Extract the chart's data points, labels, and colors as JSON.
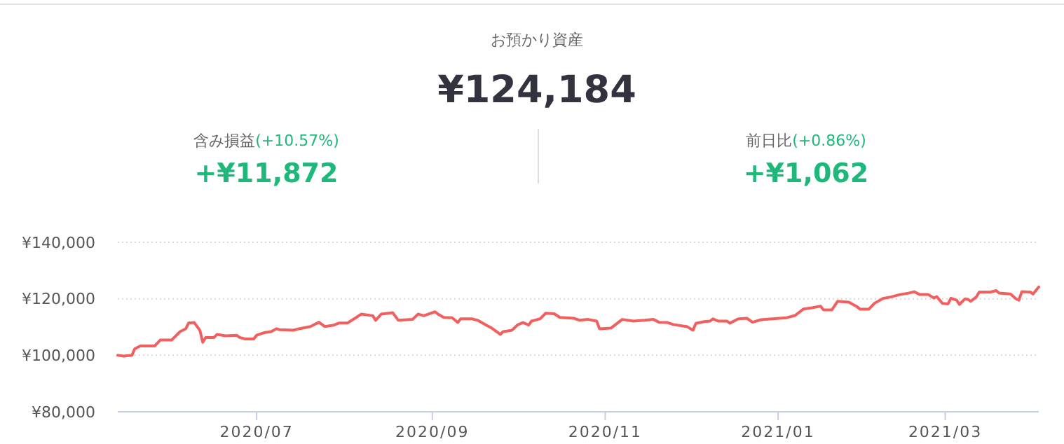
{
  "chart_data": {
    "type": "line",
    "title": "お預かり資産",
    "subtitle": "¥124,184",
    "annotations": [
      "含み損益",
      "(+10.57%)",
      "+¥11,872",
      "前日比",
      "(+0.86%)",
      "+¥1,062"
    ],
    "x": [
      "2020-05-13",
      "2020-05-15",
      "2020-05-18",
      "2020-05-19",
      "2020-05-21",
      "2020-05-26",
      "2020-05-28",
      "2020-06-01",
      "2020-06-04",
      "2020-06-06",
      "2020-06-07",
      "2020-06-09",
      "2020-06-11",
      "2020-06-12",
      "2020-06-13",
      "2020-06-16",
      "2020-06-17",
      "2020-06-20",
      "2020-06-24",
      "2020-06-25",
      "2020-06-27",
      "2020-06-30",
      "2020-07-01",
      "2020-07-04",
      "2020-07-06",
      "2020-07-08",
      "2020-07-09",
      "2020-07-14",
      "2020-07-16",
      "2020-07-20",
      "2020-07-23",
      "2020-07-25",
      "2020-07-28",
      "2020-07-30",
      "2020-08-02",
      "2020-08-05",
      "2020-08-07",
      "2020-08-11",
      "2020-08-12",
      "2020-08-14",
      "2020-08-18",
      "2020-08-20",
      "2020-08-25",
      "2020-08-27",
      "2020-08-29",
      "2020-09-02",
      "2020-09-03",
      "2020-09-05",
      "2020-09-08",
      "2020-09-10",
      "2020-09-11",
      "2020-09-15",
      "2020-09-17",
      "2020-09-20",
      "2020-09-22",
      "2020-09-25",
      "2020-09-26",
      "2020-09-29",
      "2020-10-01",
      "2020-10-03",
      "2020-10-05",
      "2020-10-06",
      "2020-10-09",
      "2020-10-11",
      "2020-10-14",
      "2020-10-16",
      "2020-10-21",
      "2020-10-23",
      "2020-10-26",
      "2020-10-29",
      "2020-10-30",
      "2020-11-03",
      "2020-11-07",
      "2020-11-11",
      "2020-11-15",
      "2020-11-18",
      "2020-11-20",
      "2020-11-23",
      "2020-11-25",
      "2020-11-30",
      "2020-12-02",
      "2020-12-03",
      "2020-12-06",
      "2020-12-08",
      "2020-12-09",
      "2020-12-11",
      "2020-12-14",
      "2020-12-15",
      "2020-12-18",
      "2020-12-21",
      "2020-12-23",
      "2020-12-26",
      "2020-12-30",
      "2021-01-04",
      "2021-01-07",
      "2021-01-10",
      "2021-01-13",
      "2021-01-16",
      "2021-01-17",
      "2021-01-20",
      "2021-01-22",
      "2021-01-26",
      "2021-01-29",
      "2021-01-30",
      "2021-02-02",
      "2021-02-04",
      "2021-02-07",
      "2021-02-10",
      "2021-02-13",
      "2021-02-16",
      "2021-02-18",
      "2021-02-20",
      "2021-02-23",
      "2021-02-25",
      "2021-02-26",
      "2021-02-28",
      "2021-03-02",
      "2021-03-03",
      "2021-03-05",
      "2021-03-06",
      "2021-03-08",
      "2021-03-09",
      "2021-03-10",
      "2021-03-12",
      "2021-03-13",
      "2021-03-17",
      "2021-03-19",
      "2021-03-20",
      "2021-03-24",
      "2021-03-26",
      "2021-03-27",
      "2021-03-28",
      "2021-03-31",
      "2021-04-01",
      "2021-04-03"
    ],
    "series": [
      {
        "color": "#f25f5f",
        "values": [
          100000,
          99700,
          100000,
          102300,
          103300,
          103300,
          105400,
          105400,
          108400,
          109400,
          111400,
          111600,
          108800,
          104600,
          106300,
          106300,
          107400,
          106900,
          107100,
          106300,
          105800,
          105800,
          107100,
          108100,
          108300,
          109400,
          109100,
          108900,
          109400,
          110200,
          111700,
          110200,
          110600,
          111400,
          111400,
          113300,
          114600,
          114000,
          112400,
          114600,
          115100,
          112400,
          112700,
          114600,
          114000,
          115400,
          114600,
          113400,
          113300,
          111600,
          112900,
          112900,
          112400,
          110700,
          109600,
          107400,
          108400,
          108800,
          110700,
          111600,
          110700,
          112100,
          112900,
          114900,
          114700,
          113400,
          113100,
          112400,
          112700,
          112100,
          109400,
          109600,
          112700,
          112100,
          112400,
          112700,
          111700,
          111600,
          110900,
          110100,
          108900,
          111300,
          111900,
          112100,
          112900,
          112100,
          112100,
          111400,
          112900,
          113100,
          111700,
          112600,
          112900,
          113300,
          114100,
          116400,
          116800,
          117400,
          116100,
          116100,
          119100,
          118800,
          117100,
          116300,
          116300,
          118400,
          120100,
          120700,
          121500,
          122000,
          122500,
          121500,
          121500,
          120300,
          120800,
          118400,
          118200,
          120200,
          119500,
          118000,
          120000,
          119800,
          119100,
          120700,
          122400,
          122400,
          122900,
          122000,
          121700,
          120000,
          119500,
          122500,
          122400,
          121700,
          124200
        ]
      }
    ],
    "xlim": [
      "2020-05-13",
      "2021-04-03"
    ],
    "xticks": [
      {
        "value": "2020-07-01",
        "label": "2020/07"
      },
      {
        "value": "2020-09-01",
        "label": "2020/09"
      },
      {
        "value": "2020-11-01",
        "label": "2020/11"
      },
      {
        "value": "2021-01-01",
        "label": "2021/01"
      },
      {
        "value": "2021-03-01",
        "label": "2021/03"
      }
    ],
    "ylim": [
      80000,
      140000
    ],
    "yticks": [
      {
        "value": 80000,
        "label": "¥80,000"
      },
      {
        "value": 100000,
        "label": "¥100,000"
      },
      {
        "value": 120000,
        "label": "¥120,000"
      },
      {
        "value": 140000,
        "label": "¥140,000"
      }
    ],
    "grid": "y",
    "marker": "none",
    "line_style": "solid"
  }
}
